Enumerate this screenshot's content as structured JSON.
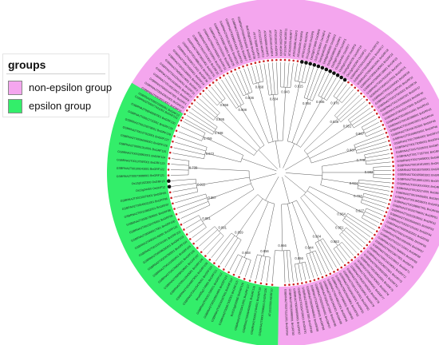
{
  "legend": {
    "title": "groups",
    "items": [
      {
        "label": "non-epsilon group",
        "color": "#f4a6ee"
      },
      {
        "label": "epsilon group",
        "color": "#33ee6a"
      }
    ]
  },
  "colors": {
    "non_epsilon_band": "#f4a6ee",
    "epsilon_band": "#33ee6a",
    "branch": "#555555",
    "dot_black": "#111111",
    "dot_red": "#cc2222"
  },
  "tree": {
    "bootstrap_values": [
      "0.938",
      "0.895",
      "0.856",
      "0.908",
      "0.836",
      "0.868",
      "0.804",
      "0.943",
      "0.915",
      "0.904",
      "0.845",
      "0.876",
      "0.838",
      "0.951",
      "0.867",
      "0.887",
      "0.779",
      "0.982",
      "0.934",
      "0.794",
      "0.827",
      "0.964",
      "0.951",
      "0.883",
      "0.904",
      "0.944",
      "0.866",
      "0.966",
      "0.856",
      "0.948",
      "0.859",
      "0.891",
      "0.881",
      "0.887",
      "0.911",
      "0.739",
      "0.972",
      "0.759",
      "0.955",
      "0.942",
      "0.885",
      "0.869",
      "0.926",
      "0.935",
      "0.963",
      "0.751",
      "0.945",
      "0.843",
      "0.889",
      "0.968",
      "0.776"
    ],
    "leaves_non_epsilon": [
      "GSBRNA2T00072305001 BnGRF13",
      "GSBRNA2T00030214001 BnGRF26",
      "GSBRNA2T00042631001 BnGRF39",
      "GSBRNA2T00024467001 BnGRF1",
      "GSBRNA2T00145016001 BnGRF8",
      "GSBRNA2T00139285001 BnGRF27",
      "GSBRNA2T00122016001 BnGRF21",
      "GSBRNA2T00096124001 BnGRF2",
      "GSBRNA2T00151088001 BnGRF33",
      "GSBRNA2T00072005001 BnGRF14",
      "GSBRNA2T00060712001 BnGRF36",
      "GSBRNA2T00148861001 BnGRF12",
      "GSBRNA2T00078651001 BnGRF31",
      "GSBRNA2T00157019001 BnGRF35",
      "GSBRNA2T00087163001 BnGRF19",
      "GSBRNA2T00013455001 BnGRF11",
      "GSBRNA2T00071552001 BnGRF9",
      "GSBRNA2T00088746001 BnGRF29",
      "GSBRNA2T00138125001 BnGRF20",
      "GSBRNA2T00096014001 BnGRF30",
      "GSBRNA2T00083552001 BnGRF7",
      "GSBRNA2T00040316001 BnGRF3",
      "BolC05g010080 BnGRF38",
      "AT1G78300 AtGRF2",
      "AT1G22300 AtGRF10",
      "AT4G09000 AtGRF1",
      "AT1G35160 AtGRF4",
      "AT5G16050 AtGRF5",
      "AT2G42590 AtGRF9",
      "AT1G34760 AtGRF11",
      "AT3G02520 AtGRF7",
      "AT5G38480 AtGRF3",
      "AT5G65430 AtGRF8",
      "AT5G10450 AtGRF6",
      "Os11g34450 OsGRF8",
      "Os02g0173900 OsGRF6",
      "Os07g0108300 OsGRF4",
      "Os04g0462500 OsGRF3",
      "Os08g0480000 OsGRF2",
      "Os01g0209500 OsGRF1",
      "Os03g0710800 OsGRF5",
      "Os12g34450 OsGRF7",
      "Os05g0110200 OsGRF9",
      "Os04g0546700 OsGRF10",
      "Os12g0192300 OsGRF11",
      "GSBRNA2T00012345001 BnGRF15",
      "GSBRNA2T00028457001 BnGRF17",
      "GSBRNA2T00034512001 BnGRF18",
      "GSBRNA2T00054190001 BnGRF22",
      "GSBRNA2T00065728001 BnGRF23",
      "GSBRNA2T00079203001 BnGRF24",
      "GSBRNA2T00091237001 BnGRF25",
      "GSBRNA2T00101564001 BnGRF28",
      "GSBRNA2T00114387001 BnGRF32",
      "GSBRNA2T00127603001 BnGRF34",
      "GSBRNA2T00131842001 BnGRF37",
      "GSBRNA2T00142955001 BnGRF40",
      "GSBRNA2T00153170001 BnGRF41",
      "GSBRNA2T00160241001 BnGRF42",
      "GSBRNA2T00162388001 BnGRF43",
      "GSBRNA2T00164519001 BnGRF44",
      "GSBRNA2T00166702001 BnGRF45",
      "GSBRNA2T00168833001 BnGRF46",
      "GSBRNA2T00170964001 BnGRF47",
      "GSBRNA2T00173095001 BnGRF48",
      "GSBRNA2T00175226001 BnGRF49",
      "GSBRNA2T00177357001 BnGRF50",
      "GSBRNA2T00179488001 BnGRF51",
      "GSBRNA2T00181619001 BnGRF52",
      "GSBRNA2T00183750001 BnGRF53",
      "GSBRNA2T00185881001 BnGRF54",
      "GSBRNA2T00188012001 BnGRF55",
      "GSBRNA2T00190143001 BnGRF56",
      "GSBRNA2T00192274001 BnGRF57",
      "GSBRNA2T00194405001 BnGRF58",
      "GSBRNA2T00196536001 BnGRF59",
      "GSBRNA2T00198667001 BnGRF60",
      "GSBRNA2T00200798001 BnGRF61",
      "GSBRNA2T00202929001 BnGRF62",
      "GSBRNA2T00205060001 BnGRF63",
      "GSBRNA2T00207191001 BnGRF64",
      "GSBRNA2T00209322001 BnGRF65",
      "GSBRNA2T00211453001 BnGRF66",
      "GSBRNA2T00213584001 BnGRF67",
      "GSBRNA2T00215715001 BnGRF68",
      "GSBRNA2T00217846001 BnGRF69",
      "GSBRNA2T00219977001 BnGRF70",
      "GSBRNA2T00222108001 BnGRF71",
      "GSBRNA2T00224239001 BnGRF72",
      "GSBRNA2T00226370001 BnGRF73",
      "GSBRNA2T00228501001 BnGRF74",
      "GSBRNA2T00230632001 BnGRF75",
      "GSBRNA2T00232763001 BnGRF76",
      "GSBRNA2T00234894001 BnGRF77",
      "GSBRNA2T00237025001 BnGRF78",
      "GSBRNA2T00239156001 BnGRF79",
      "GSBRNA2T00241287001 BnGRF80",
      "GSBRNA2T00243418001 BnGRF81",
      "GSBRNA2T00245549001 BnGRF82",
      "GSBRNA2T00247680001 BnGRF83",
      "GSBRNA2T00249811001 BnGRF84",
      "GSBRNA2T00251942001 BnGRF85",
      "GSBRNA2T00254073001 BnGRF86",
      "GSBRNA2T00256204001 BnGRF87",
      "GSBRNA2T00258335001 BnGRF88",
      "GSBRNA2T00260466001 BnGRF89",
      "GSBRNA2T00262597001 BnGRF90",
      "GSBRNA2T00264728001 BnGRF91",
      "GSBRNA2T00266859001 BnGRF92",
      "GSBRNA2T00268990001 BnGRF93",
      "GSBRNA2T00271121001 BnGRF94"
    ],
    "leaves_epsilon": [
      "AT1G22300 AtGRF10",
      "GSBRNA2T00017006001 BnGRF120",
      "GSBRNA2T00001784001 BnGRF119",
      "GSBRNA2T00084506001 BnGRF118",
      "GSBRNA2T00033411001 BnGRF117",
      "BolC03g026960 BnGRF116",
      "GSBRNA2T00067332001 BnGRF115",
      "GSBRNA2T00103187001 BnGRF114",
      "GSBRNA2T00120554001 BnGRF113",
      "GSBRNA2T00091726001 BnGRF112",
      "BnaA05g17450D BnGRF111",
      "GSBRNA2T00125478001 BnGRF110",
      "GSBRNA2T00049873001 BnGRF109",
      "GSBRNA2T00112640001 BnGRF108",
      "GSBRNA2T00058429001 BnGRF107",
      "GSBRNA2T00079834001 BnGRF106",
      "GSBRNA2T00141992001 BnGRF105",
      "GSBRNA2T00036780001 BnGRF104",
      "GSBRNA2T00098265001 BnGRF103",
      "GSBRNA2T00153701001 BnGRF102",
      "GSBRNA2T00024148001 BnGRF101",
      "GSBRNA2T00066917001 BnGRF100",
      "GSBRNA2T00132475001 BnGRF99",
      "GSBRNA2T00087309001 BnGRF98",
      "GSBRNA2T00118862001 BnGRF97",
      "GSBRNA2T00045021001 BnGRF96",
      "GSBRNA2T00150376001 BnGRF95",
      "Os11g34450 OsGRF12",
      "Os12g0192300 OsGRF13",
      "GSBRNA2T00073688001 BnGRF121",
      "GSBRNA2T00109243001 BnGRF122",
      "GSBRNA2T00137597001 BnGRF123",
      "GSBRNA2T00028950001 BnGRF124",
      "GSBRNA2T00061314001 BnGRF125",
      "GSBRNA2T00094669001 BnGRF126",
      "GSBRNA2T00127023001 BnGRF127",
      "GSBRNA2T00159378001 BnGRF128",
      "GSBRNA2T00012732001 BnGRF129",
      "GSBRNA2T00045087001 BnGRF130",
      "GSBRNA2T00077441001 BnGRF131"
    ]
  }
}
